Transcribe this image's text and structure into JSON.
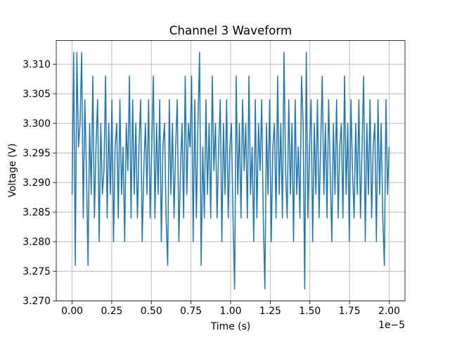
{
  "chart_data": {
    "type": "line",
    "title": "Channel 3 Waveform",
    "xlabel": "Time (s)",
    "ylabel": "Voltage (V)",
    "x_offset_label": "1e−5",
    "x_scale": 1e-05,
    "x_range": [
      0,
      2e-05
    ],
    "xlim": [
      -1e-06,
      2.1e-05
    ],
    "ylim": [
      3.27,
      3.314
    ],
    "xticks": [
      0,
      0.25,
      0.5,
      0.75,
      1.0,
      1.25,
      1.5,
      1.75,
      2.0
    ],
    "xtick_labels": [
      "0.00",
      "0.25",
      "0.50",
      "0.75",
      "1.00",
      "1.25",
      "1.50",
      "1.75",
      "2.00"
    ],
    "yticks": [
      3.27,
      3.275,
      3.28,
      3.285,
      3.29,
      3.295,
      3.3,
      3.305,
      3.31
    ],
    "ytick_labels": [
      "3.270",
      "3.275",
      "3.280",
      "3.285",
      "3.290",
      "3.295",
      "3.300",
      "3.305",
      "3.310"
    ],
    "grid": true,
    "color": "#1f77b4",
    "series": [
      {
        "name": "Channel 3",
        "values": [
          3.288,
          3.312,
          3.276,
          3.312,
          3.296,
          3.3,
          3.312,
          3.284,
          3.304,
          3.292,
          3.276,
          3.3,
          3.288,
          3.308,
          3.284,
          3.296,
          3.304,
          3.28,
          3.3,
          3.288,
          3.292,
          3.308,
          3.284,
          3.3,
          3.288,
          3.304,
          3.28,
          3.296,
          3.3,
          3.284,
          3.304,
          3.288,
          3.296,
          3.28,
          3.3,
          3.292,
          3.308,
          3.284,
          3.304,
          3.288,
          3.3,
          3.284,
          3.296,
          3.304,
          3.28,
          3.292,
          3.3,
          3.288,
          3.304,
          3.284,
          3.296,
          3.308,
          3.284,
          3.3,
          3.288,
          3.304,
          3.28,
          3.296,
          3.3,
          3.284,
          3.276,
          3.304,
          3.288,
          3.3,
          3.284,
          3.296,
          3.304,
          3.28,
          3.292,
          3.3,
          3.284,
          3.308,
          3.288,
          3.3,
          3.296,
          3.308,
          3.28,
          3.304,
          3.284,
          3.3,
          3.312,
          3.276,
          3.296,
          3.284,
          3.304,
          3.288,
          3.3,
          3.284,
          3.308,
          3.292,
          3.3,
          3.284,
          3.296,
          3.304,
          3.28,
          3.3,
          3.288,
          3.304,
          3.284,
          3.296,
          3.3,
          3.284,
          3.272,
          3.308,
          3.288,
          3.3,
          3.284,
          3.304,
          3.292,
          3.3,
          3.284,
          3.308,
          3.288,
          3.296,
          3.28,
          3.304,
          3.284,
          3.3,
          3.292,
          3.304,
          3.284,
          3.272,
          3.3,
          3.288,
          3.304,
          3.28,
          3.296,
          3.3,
          3.284,
          3.308,
          3.288,
          3.3,
          3.284,
          3.312,
          3.292,
          3.284,
          3.304,
          3.288,
          3.3,
          3.28,
          3.304,
          3.288,
          3.296,
          3.284,
          3.308,
          3.3,
          3.272,
          3.312,
          3.284,
          3.296,
          3.304,
          3.28,
          3.3,
          3.288,
          3.304,
          3.284,
          3.296,
          3.308,
          3.288,
          3.3,
          3.284,
          3.304,
          3.292,
          3.28,
          3.3,
          3.288,
          3.304,
          3.284,
          3.296,
          3.3,
          3.284,
          3.308,
          3.288,
          3.3,
          3.28,
          3.304,
          3.292,
          3.284,
          3.3,
          3.288,
          3.304,
          3.284,
          3.296,
          3.308,
          3.28,
          3.3,
          3.288,
          3.304,
          3.284,
          3.296,
          3.3,
          3.28,
          3.304,
          3.288,
          3.3,
          3.284,
          3.276,
          3.304,
          3.288,
          3.296
        ]
      }
    ]
  }
}
